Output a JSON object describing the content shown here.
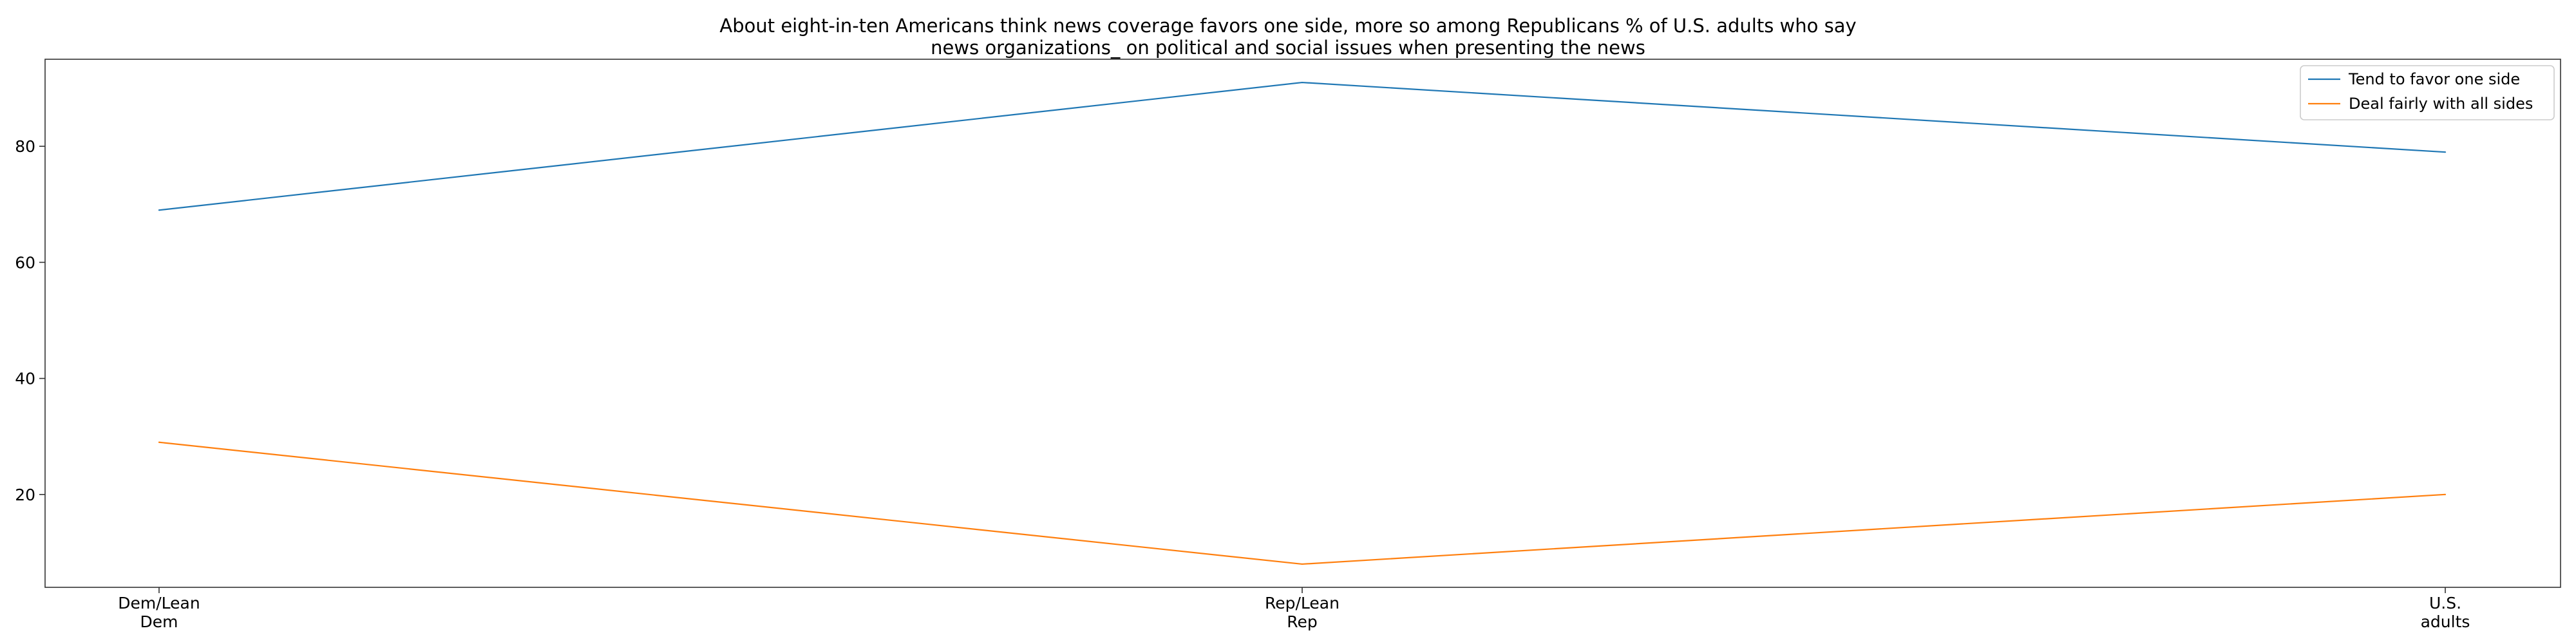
{
  "chart_data": {
    "type": "line",
    "title": [
      "About eight-in-ten Americans think news coverage favors one side, more so among Republicans % of U.S. adults who say",
      "news organizations_ on political and social issues when presenting the news"
    ],
    "xlabel": "",
    "ylabel": "",
    "categories": [
      [
        "Dem/Lean",
        "Dem"
      ],
      [
        "Rep/Lean",
        "Rep"
      ],
      [
        "U.S.",
        "adults"
      ]
    ],
    "yticks": [
      "20",
      "40",
      "60",
      "80"
    ],
    "ylim": [
      4,
      95
    ],
    "grid": false,
    "legend_position": "top-right",
    "series": [
      {
        "name": "Tend to favor one side",
        "color": "#1f77b4",
        "values": [
          69,
          91,
          79
        ]
      },
      {
        "name": "Deal fairly with all sides",
        "color": "#ff7f0e",
        "values": [
          29,
          8,
          20
        ]
      }
    ]
  }
}
